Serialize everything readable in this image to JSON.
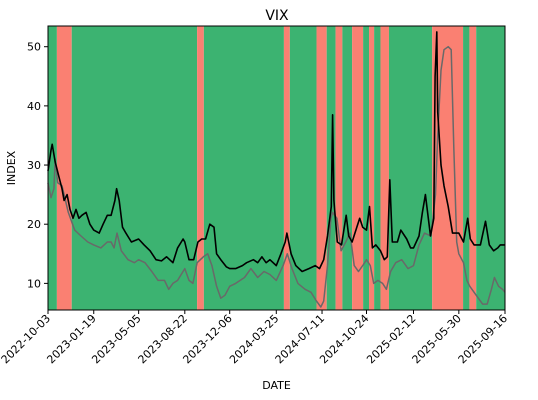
{
  "chart_data": {
    "type": "line",
    "title": "VIX",
    "xlabel": "DATE",
    "ylabel": "INDEX",
    "xlim": [
      "2022-10-03",
      "2025-09-16"
    ],
    "ylim": [
      5.5,
      53.5
    ],
    "y_ticks": [
      10,
      20,
      30,
      40,
      50
    ],
    "x_ticks": [
      "2022-10-03",
      "2023-01-19",
      "2023-05-05",
      "2023-08-22",
      "2023-12-06",
      "2024-03-25",
      "2024-07-11",
      "2024-10-24",
      "2025-02-12",
      "2025-05-30",
      "2025-09-16"
    ],
    "grid": false,
    "legend": "none",
    "colors": {
      "up_regime": "#3cb371",
      "down_regime": "#fa8072",
      "series_main": "#000000",
      "series_secondary": "#696969"
    },
    "regimes": [
      {
        "start": "2022-10-03",
        "end": "2022-10-24",
        "state": "up"
      },
      {
        "start": "2022-10-24",
        "end": "2022-11-28",
        "state": "down"
      },
      {
        "start": "2022-11-28",
        "end": "2023-09-20",
        "state": "up"
      },
      {
        "start": "2023-09-20",
        "end": "2023-10-06",
        "state": "down"
      },
      {
        "start": "2023-10-06",
        "end": "2024-04-12",
        "state": "up"
      },
      {
        "start": "2024-04-12",
        "end": "2024-04-26",
        "state": "down"
      },
      {
        "start": "2024-04-26",
        "end": "2024-06-28",
        "state": "up"
      },
      {
        "start": "2024-06-28",
        "end": "2024-07-22",
        "state": "down"
      },
      {
        "start": "2024-07-22",
        "end": "2024-08-12",
        "state": "up"
      },
      {
        "start": "2024-08-12",
        "end": "2024-08-28",
        "state": "down"
      },
      {
        "start": "2024-08-28",
        "end": "2024-09-20",
        "state": "up"
      },
      {
        "start": "2024-09-20",
        "end": "2024-10-16",
        "state": "down"
      },
      {
        "start": "2024-10-16",
        "end": "2024-10-30",
        "state": "up"
      },
      {
        "start": "2024-10-30",
        "end": "2024-11-11",
        "state": "down"
      },
      {
        "start": "2024-11-11",
        "end": "2024-11-26",
        "state": "up"
      },
      {
        "start": "2024-11-26",
        "end": "2024-12-16",
        "state": "down"
      },
      {
        "start": "2024-12-16",
        "end": "2025-03-28",
        "state": "up"
      },
      {
        "start": "2025-03-28",
        "end": "2025-06-09",
        "state": "down"
      },
      {
        "start": "2025-06-09",
        "end": "2025-06-24",
        "state": "up"
      },
      {
        "start": "2025-06-24",
        "end": "2025-07-10",
        "state": "down"
      },
      {
        "start": "2025-07-10",
        "end": "2025-09-16",
        "state": "up"
      }
    ],
    "series": [
      {
        "values": [
          [
            "2022-10-03",
            29.0
          ],
          [
            "2022-10-10",
            32.5
          ],
          [
            "2022-10-13",
            33.5
          ],
          [
            "2022-10-20",
            30.5
          ],
          [
            "2022-10-27",
            28.5
          ],
          [
            "2022-11-05",
            26.0
          ],
          [
            "2022-11-10",
            24.0
          ],
          [
            "2022-11-17",
            25.0
          ],
          [
            "2022-11-24",
            22.5
          ],
          [
            "2022-12-01",
            21.0
          ],
          [
            "2022-12-08",
            22.5
          ],
          [
            "2022-12-15",
            21.0
          ],
          [
            "2022-12-22",
            21.5
          ],
          [
            "2023-01-01",
            22.0
          ],
          [
            "2023-01-10",
            20.0
          ],
          [
            "2023-01-19",
            19.0
          ],
          [
            "2023-02-01",
            18.5
          ],
          [
            "2023-02-10",
            20.0
          ],
          [
            "2023-02-20",
            21.5
          ],
          [
            "2023-03-01",
            21.5
          ],
          [
            "2023-03-10",
            24.0
          ],
          [
            "2023-03-14",
            26.0
          ],
          [
            "2023-03-20",
            24.0
          ],
          [
            "2023-03-28",
            19.5
          ],
          [
            "2023-04-05",
            18.5
          ],
          [
            "2023-04-18",
            17.0
          ],
          [
            "2023-05-05",
            17.5
          ],
          [
            "2023-05-18",
            16.5
          ],
          [
            "2023-06-01",
            15.5
          ],
          [
            "2023-06-15",
            14.0
          ],
          [
            "2023-06-28",
            13.8
          ],
          [
            "2023-07-10",
            14.5
          ],
          [
            "2023-07-25",
            13.5
          ],
          [
            "2023-08-05",
            16.0
          ],
          [
            "2023-08-18",
            17.5
          ],
          [
            "2023-08-22",
            17.0
          ],
          [
            "2023-09-01",
            14.0
          ],
          [
            "2023-09-12",
            14.0
          ],
          [
            "2023-09-22",
            17.0
          ],
          [
            "2023-10-01",
            17.5
          ],
          [
            "2023-10-10",
            17.5
          ],
          [
            "2023-10-20",
            20.0
          ],
          [
            "2023-10-30",
            19.5
          ],
          [
            "2023-11-05",
            15.0
          ],
          [
            "2023-11-15",
            14.0
          ],
          [
            "2023-11-28",
            12.8
          ],
          [
            "2023-12-06",
            12.5
          ],
          [
            "2023-12-20",
            12.5
          ],
          [
            "2024-01-05",
            13.0
          ],
          [
            "2024-01-15",
            13.5
          ],
          [
            "2024-01-31",
            14.0
          ],
          [
            "2024-02-10",
            13.5
          ],
          [
            "2024-02-20",
            14.5
          ],
          [
            "2024-03-01",
            13.5
          ],
          [
            "2024-03-10",
            14.0
          ],
          [
            "2024-03-25",
            13.0
          ],
          [
            "2024-04-05",
            15.0
          ],
          [
            "2024-04-15",
            17.0
          ],
          [
            "2024-04-19",
            18.5
          ],
          [
            "2024-04-29",
            15.0
          ],
          [
            "2024-05-10",
            13.0
          ],
          [
            "2024-05-25",
            12.0
          ],
          [
            "2024-06-10",
            12.5
          ],
          [
            "2024-06-25",
            13.0
          ],
          [
            "2024-07-05",
            12.5
          ],
          [
            "2024-07-15",
            14.0
          ],
          [
            "2024-07-24",
            18.0
          ],
          [
            "2024-08-02",
            23.0
          ],
          [
            "2024-08-05",
            38.5
          ],
          [
            "2024-08-08",
            24.0
          ],
          [
            "2024-08-16",
            17.0
          ],
          [
            "2024-08-26",
            16.5
          ],
          [
            "2024-09-06",
            21.5
          ],
          [
            "2024-09-12",
            18.0
          ],
          [
            "2024-09-20",
            17.0
          ],
          [
            "2024-10-01",
            19.5
          ],
          [
            "2024-10-08",
            21.0
          ],
          [
            "2024-10-15",
            19.5
          ],
          [
            "2024-10-24",
            19.0
          ],
          [
            "2024-10-31",
            23.0
          ],
          [
            "2024-11-07",
            16.0
          ],
          [
            "2024-11-15",
            16.5
          ],
          [
            "2024-11-26",
            15.5
          ],
          [
            "2024-12-05",
            14.0
          ],
          [
            "2024-12-12",
            14.5
          ],
          [
            "2024-12-18",
            27.5
          ],
          [
            "2024-12-24",
            17.0
          ],
          [
            "2025-01-05",
            17.0
          ],
          [
            "2025-01-13",
            19.0
          ],
          [
            "2025-01-27",
            17.5
          ],
          [
            "2025-02-05",
            16.0
          ],
          [
            "2025-02-12",
            16.0
          ],
          [
            "2025-02-25",
            18.0
          ],
          [
            "2025-03-05",
            22.0
          ],
          [
            "2025-03-12",
            25.0
          ],
          [
            "2025-03-24",
            18.0
          ],
          [
            "2025-04-01",
            21.0
          ],
          [
            "2025-04-04",
            45.0
          ],
          [
            "2025-04-08",
            52.5
          ],
          [
            "2025-04-10",
            39.0
          ],
          [
            "2025-04-18",
            30.0
          ],
          [
            "2025-04-25",
            26.5
          ],
          [
            "2025-05-05",
            23.0
          ],
          [
            "2025-05-15",
            18.5
          ],
          [
            "2025-05-30",
            18.5
          ],
          [
            "2025-06-10",
            17.0
          ],
          [
            "2025-06-20",
            21.0
          ],
          [
            "2025-06-26",
            17.5
          ],
          [
            "2025-07-05",
            16.5
          ],
          [
            "2025-07-20",
            16.5
          ],
          [
            "2025-08-01",
            20.5
          ],
          [
            "2025-08-10",
            16.5
          ],
          [
            "2025-08-20",
            15.5
          ],
          [
            "2025-08-30",
            16.0
          ],
          [
            "2025-09-05",
            16.5
          ],
          [
            "2025-09-16",
            16.5
          ]
        ]
      },
      {
        "values": [
          [
            "2022-10-03",
            27.0
          ],
          [
            "2022-10-10",
            24.5
          ],
          [
            "2022-10-17",
            26.0
          ],
          [
            "2022-10-20",
            31.0
          ],
          [
            "2022-10-26",
            27.0
          ],
          [
            "2022-11-05",
            26.5
          ],
          [
            "2022-11-20",
            22.0
          ],
          [
            "2022-12-05",
            19.0
          ],
          [
            "2022-12-20",
            18.0
          ],
          [
            "2023-01-05",
            17.0
          ],
          [
            "2023-01-19",
            16.5
          ],
          [
            "2023-02-05",
            16.0
          ],
          [
            "2023-02-20",
            17.0
          ],
          [
            "2023-03-01",
            17.0
          ],
          [
            "2023-03-08",
            16.0
          ],
          [
            "2023-03-15",
            18.5
          ],
          [
            "2023-03-25",
            15.5
          ],
          [
            "2023-04-10",
            14.0
          ],
          [
            "2023-04-25",
            13.5
          ],
          [
            "2023-05-05",
            14.0
          ],
          [
            "2023-05-20",
            13.5
          ],
          [
            "2023-06-05",
            12.0
          ],
          [
            "2023-06-20",
            10.5
          ],
          [
            "2023-07-05",
            10.5
          ],
          [
            "2023-07-15",
            9.0
          ],
          [
            "2023-07-25",
            10.0
          ],
          [
            "2023-08-05",
            10.5
          ],
          [
            "2023-08-22",
            12.5
          ],
          [
            "2023-09-01",
            10.5
          ],
          [
            "2023-09-10",
            10.0
          ],
          [
            "2023-09-20",
            13.5
          ],
          [
            "2023-10-05",
            14.5
          ],
          [
            "2023-10-15",
            15.0
          ],
          [
            "2023-10-25",
            13.0
          ],
          [
            "2023-11-05",
            9.5
          ],
          [
            "2023-11-15",
            7.5
          ],
          [
            "2023-11-25",
            8.0
          ],
          [
            "2023-12-06",
            9.5
          ],
          [
            "2023-12-20",
            10.0
          ],
          [
            "2024-01-10",
            11.0
          ],
          [
            "2024-01-25",
            12.5
          ],
          [
            "2024-02-10",
            11.0
          ],
          [
            "2024-02-25",
            12.0
          ],
          [
            "2024-03-10",
            11.5
          ],
          [
            "2024-03-25",
            10.5
          ],
          [
            "2024-04-10",
            13.0
          ],
          [
            "2024-04-20",
            15.0
          ],
          [
            "2024-05-01",
            12.5
          ],
          [
            "2024-05-15",
            10.0
          ],
          [
            "2024-06-01",
            9.0
          ],
          [
            "2024-06-15",
            8.5
          ],
          [
            "2024-06-28",
            7.0
          ],
          [
            "2024-07-08",
            6.0
          ],
          [
            "2024-07-15",
            7.0
          ],
          [
            "2024-07-24",
            13.0
          ],
          [
            "2024-08-01",
            21.0
          ],
          [
            "2024-08-05",
            22.0
          ],
          [
            "2024-08-15",
            21.0
          ],
          [
            "2024-08-25",
            15.5
          ],
          [
            "2024-09-05",
            17.0
          ],
          [
            "2024-09-15",
            18.5
          ],
          [
            "2024-09-25",
            13.0
          ],
          [
            "2024-10-05",
            12.0
          ],
          [
            "2024-10-15",
            13.0
          ],
          [
            "2024-10-24",
            14.0
          ],
          [
            "2024-11-02",
            13.0
          ],
          [
            "2024-11-10",
            10.0
          ],
          [
            "2024-11-20",
            10.5
          ],
          [
            "2024-12-01",
            10.0
          ],
          [
            "2024-12-10",
            9.0
          ],
          [
            "2024-12-20",
            12.0
          ],
          [
            "2025-01-01",
            13.5
          ],
          [
            "2025-01-15",
            14.0
          ],
          [
            "2025-01-30",
            12.5
          ],
          [
            "2025-02-12",
            13.0
          ],
          [
            "2025-02-25",
            16.5
          ],
          [
            "2025-03-10",
            18.5
          ],
          [
            "2025-03-25",
            18.0
          ],
          [
            "2025-04-05",
            25.0
          ],
          [
            "2025-04-10",
            35.0
          ],
          [
            "2025-04-18",
            46.0
          ],
          [
            "2025-04-25",
            49.5
          ],
          [
            "2025-05-05",
            50.0
          ],
          [
            "2025-05-12",
            49.5
          ],
          [
            "2025-05-18",
            33.0
          ],
          [
            "2025-05-25",
            17.0
          ],
          [
            "2025-05-30",
            15.0
          ],
          [
            "2025-06-10",
            13.5
          ],
          [
            "2025-06-18",
            10.5
          ],
          [
            "2025-06-25",
            9.5
          ],
          [
            "2025-07-05",
            8.5
          ],
          [
            "2025-07-15",
            7.5
          ],
          [
            "2025-07-25",
            6.5
          ],
          [
            "2025-08-05",
            6.5
          ],
          [
            "2025-08-15",
            9.0
          ],
          [
            "2025-08-22",
            11.0
          ],
          [
            "2025-09-01",
            9.5
          ],
          [
            "2025-09-10",
            9.0
          ],
          [
            "2025-09-16",
            8.5
          ]
        ]
      }
    ]
  }
}
